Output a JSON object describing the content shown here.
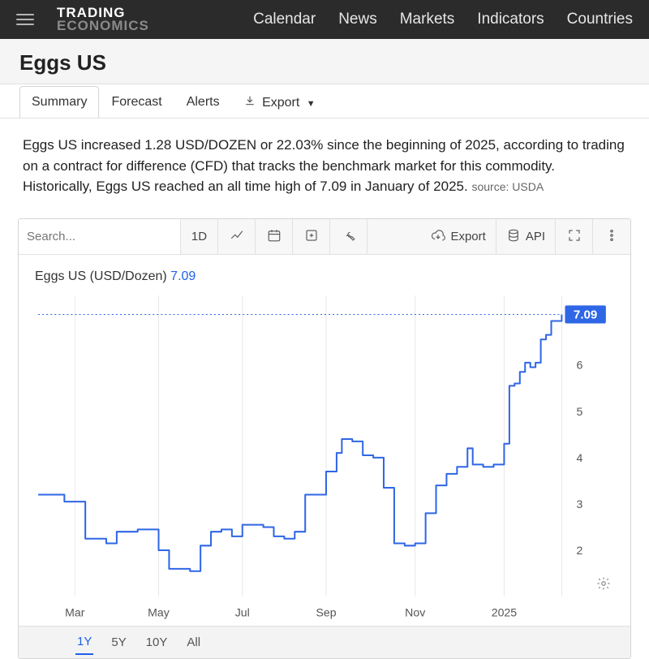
{
  "brand": {
    "top": "TRADING",
    "bot": "ECONOMICS"
  },
  "nav": [
    "Calendar",
    "News",
    "Markets",
    "Indicators",
    "Countries"
  ],
  "page_title": "Eggs US",
  "tabs": {
    "items": [
      "Summary",
      "Forecast",
      "Alerts"
    ],
    "active": 0,
    "export_label": "Export"
  },
  "description": {
    "text": "Eggs US increased 1.28 USD/DOZEN or 22.03% since the beginning of 2025, according to trading on a contract for difference (CFD) that tracks the benchmark market for this commodity. Historically, Eggs US reached an all time high of 7.09 in January of 2025.",
    "source_prefix": "source:",
    "source": "USDA"
  },
  "chart_toolbar": {
    "search_placeholder": "Search...",
    "period_label": "1D",
    "export_label": "Export",
    "api_label": "API"
  },
  "chart": {
    "type": "line",
    "legend_label": "Eggs US (USD/Dozen)",
    "legend_value": "7.09",
    "current_value_badge": "7.09",
    "ylim": [
      1.0,
      7.5
    ],
    "ytick_values": [
      2,
      3,
      4,
      5,
      6
    ],
    "ytick_labels": [
      "2",
      "3",
      "4",
      "5",
      "6"
    ],
    "x_labels": [
      "Mar",
      "May",
      "Jul",
      "Sep",
      "Nov",
      "2025"
    ],
    "x_label_positions_pct": [
      7,
      23,
      39,
      55,
      72,
      89
    ],
    "line_color": "#2e66e6",
    "line_width": 2,
    "grid_color": "#e8e8e8",
    "background_color": "#ffffff",
    "badge_bg": "#2e66e6",
    "badge_text_color": "#ffffff",
    "tick_font_size": 14,
    "legend_font_size": 16,
    "dotted_ref_color": "#2e66e6",
    "data": [
      [
        0,
        3.2
      ],
      [
        3,
        3.2
      ],
      [
        5,
        3.05
      ],
      [
        7,
        3.05
      ],
      [
        9,
        2.25
      ],
      [
        11,
        2.25
      ],
      [
        13,
        2.15
      ],
      [
        15,
        2.4
      ],
      [
        17,
        2.4
      ],
      [
        19,
        2.45
      ],
      [
        21,
        2.45
      ],
      [
        23,
        2.0
      ],
      [
        25,
        1.6
      ],
      [
        27,
        1.6
      ],
      [
        29,
        1.55
      ],
      [
        31,
        2.1
      ],
      [
        33,
        2.4
      ],
      [
        35,
        2.45
      ],
      [
        37,
        2.3
      ],
      [
        39,
        2.55
      ],
      [
        41,
        2.55
      ],
      [
        43,
        2.5
      ],
      [
        45,
        2.3
      ],
      [
        47,
        2.25
      ],
      [
        49,
        2.4
      ],
      [
        51,
        3.2
      ],
      [
        53,
        3.2
      ],
      [
        55,
        3.7
      ],
      [
        57,
        4.1
      ],
      [
        58,
        4.4
      ],
      [
        60,
        4.35
      ],
      [
        62,
        4.05
      ],
      [
        64,
        4.0
      ],
      [
        66,
        3.35
      ],
      [
        68,
        2.15
      ],
      [
        70,
        2.1
      ],
      [
        72,
        2.15
      ],
      [
        74,
        2.8
      ],
      [
        76,
        3.4
      ],
      [
        78,
        3.65
      ],
      [
        80,
        3.8
      ],
      [
        82,
        4.2
      ],
      [
        83,
        3.85
      ],
      [
        85,
        3.8
      ],
      [
        87,
        3.85
      ],
      [
        89,
        4.3
      ],
      [
        90,
        5.55
      ],
      [
        91,
        5.6
      ],
      [
        92,
        5.85
      ],
      [
        93,
        6.05
      ],
      [
        94,
        5.95
      ],
      [
        95,
        6.05
      ],
      [
        96,
        6.55
      ],
      [
        97,
        6.65
      ],
      [
        98,
        6.95
      ],
      [
        100,
        7.09
      ]
    ]
  },
  "ranges": {
    "items": [
      "1Y",
      "5Y",
      "10Y",
      "All"
    ],
    "active": 0
  }
}
